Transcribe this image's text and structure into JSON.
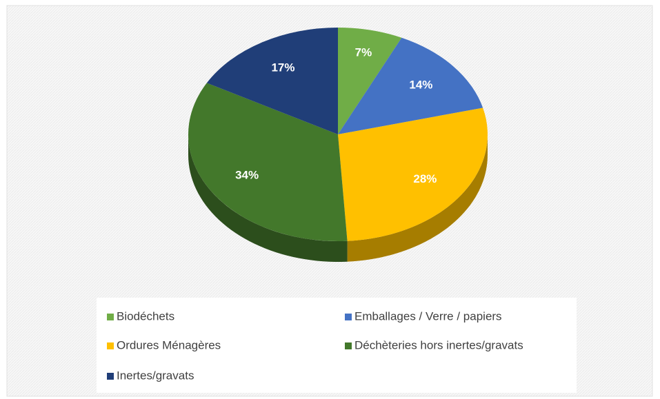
{
  "chart_data": {
    "type": "pie3d",
    "categories": [
      "Biodéchets",
      "Emballages / Verre / papiers",
      "Ordures Ménagères",
      "Déchèteries hors inertes/gravats",
      "Inertes/gravats"
    ],
    "values": [
      7,
      14,
      28,
      34,
      17
    ],
    "value_labels": [
      "7%",
      "14%",
      "28%",
      "34%",
      "17%"
    ],
    "colors": [
      "#70ad47",
      "#4472c4",
      "#ffc000",
      "#43782b",
      "#203e78"
    ],
    "legend": "bottom"
  }
}
